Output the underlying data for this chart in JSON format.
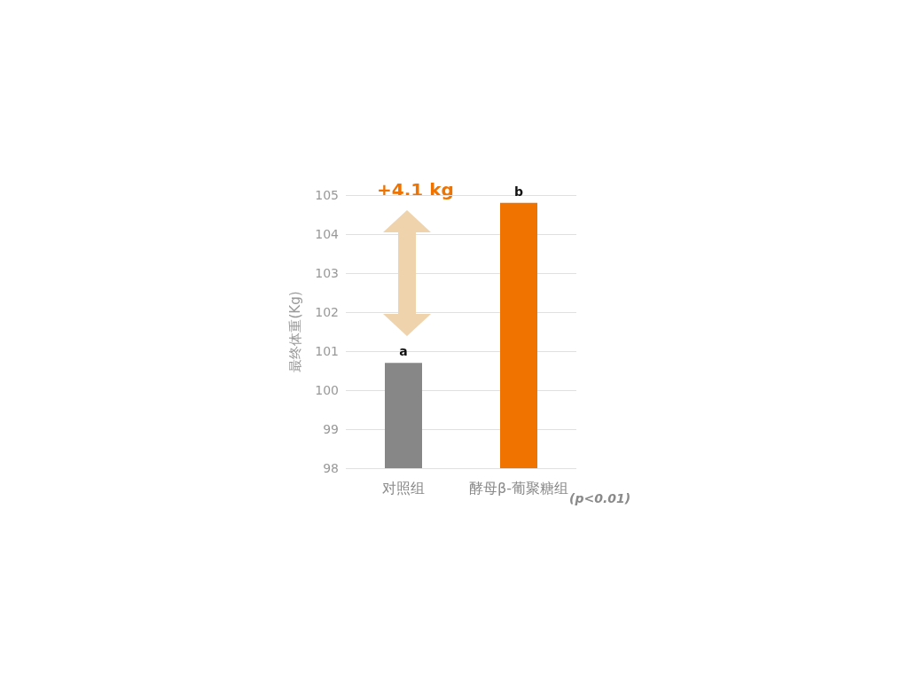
{
  "chart_data": {
    "type": "bar",
    "ylabel": "最终体重(Kg)",
    "categories": [
      "对照组",
      "酵母β-葡聚糖组"
    ],
    "values": [
      100.7,
      104.8
    ],
    "colors": [
      "#878787",
      "#f07300"
    ],
    "ylim": [
      98,
      105
    ],
    "yticks": [
      98,
      99,
      100,
      101,
      102,
      103,
      104,
      105
    ],
    "grid": "y",
    "annotations": [
      {
        "text": "a",
        "x": "对照组",
        "y": 100.7
      },
      {
        "text": "b",
        "x": "酵母β-葡聚糖组",
        "y": 104.8
      },
      "+4.1 kg",
      "(p<0.01)"
    ]
  }
}
